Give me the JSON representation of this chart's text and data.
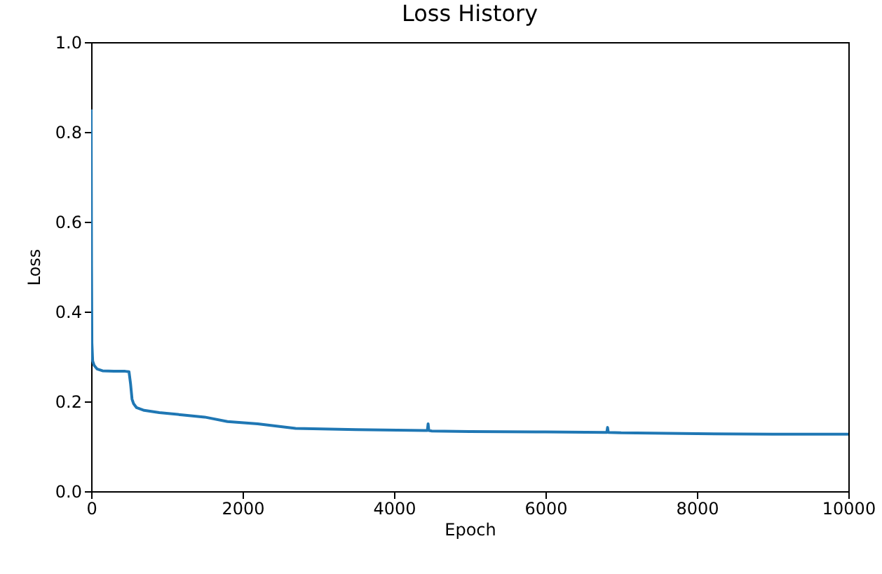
{
  "chart_data": {
    "type": "line",
    "title": "Loss History",
    "xlabel": "Epoch",
    "ylabel": "Loss",
    "x": [
      0,
      5,
      10,
      20,
      40,
      80,
      150,
      300,
      450,
      500,
      520,
      540,
      560,
      600,
      700,
      900,
      1200,
      1500,
      1800,
      2200,
      2700,
      3500,
      4400,
      4440,
      4450,
      4460,
      4500,
      5000,
      6000,
      6800,
      6810,
      6820,
      6830,
      7000,
      8000,
      9000,
      10000
    ],
    "series": [
      {
        "color": "#1f77b4",
        "values": [
          0.85,
          0.5,
          0.33,
          0.29,
          0.28,
          0.272,
          0.268,
          0.267,
          0.267,
          0.266,
          0.24,
          0.205,
          0.195,
          0.186,
          0.18,
          0.175,
          0.17,
          0.165,
          0.155,
          0.15,
          0.14,
          0.137,
          0.135,
          0.135,
          0.15,
          0.135,
          0.134,
          0.133,
          0.132,
          0.131,
          0.131,
          0.142,
          0.131,
          0.13,
          0.128,
          0.127,
          0.127
        ]
      }
    ],
    "xlim": [
      0,
      10000
    ],
    "xticks": [
      0,
      2000,
      4000,
      6000,
      8000,
      10000
    ],
    "ylim": [
      0,
      1
    ],
    "yticks": [
      {
        "value": 0,
        "label": "0.0"
      },
      0.2,
      0.4,
      0.6,
      0.8,
      {
        "value": 1,
        "label": "1.0"
      }
    ],
    "grid": false,
    "legend": false,
    "marker": "none",
    "line_style": "solid"
  }
}
